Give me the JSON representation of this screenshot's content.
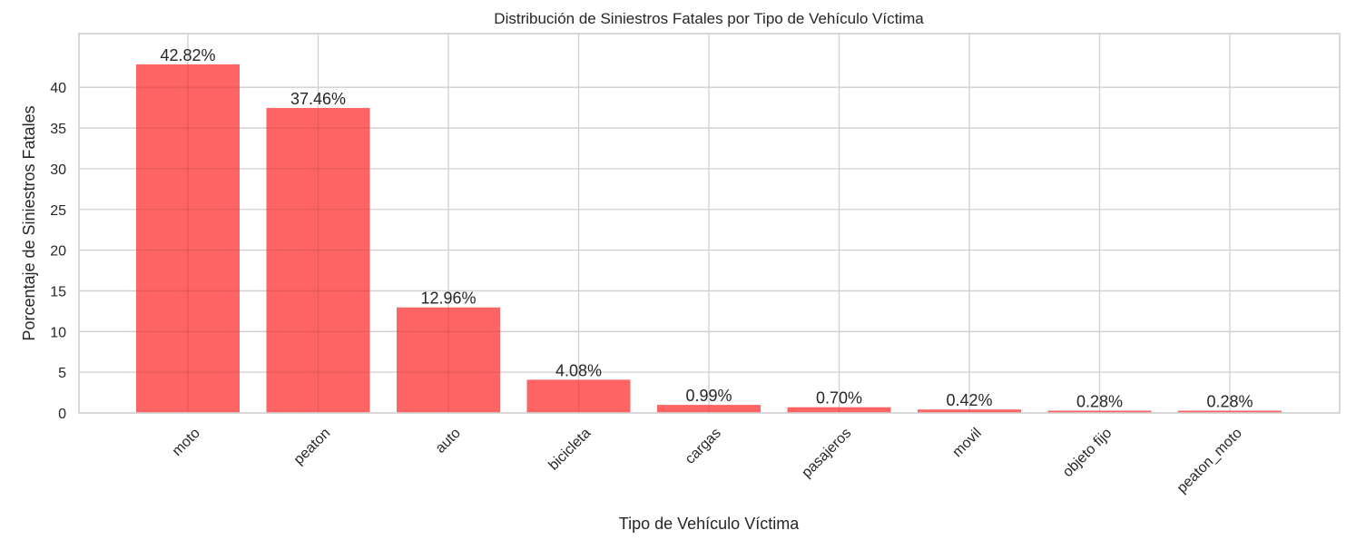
{
  "chart_data": {
    "type": "bar",
    "title": "Distribución de Siniestros Fatales por Tipo de Vehículo Víctima",
    "xlabel": "Tipo de Vehículo Víctima",
    "ylabel": "Porcentaje de Siniestros Fatales",
    "categories": [
      "moto",
      "peaton",
      "auto",
      "bicicleta",
      "cargas",
      "pasajeros",
      "movil",
      "objeto fijo",
      "peaton_moto"
    ],
    "values": [
      42.82,
      37.46,
      12.96,
      4.08,
      0.99,
      0.7,
      0.42,
      0.28,
      0.28
    ],
    "data_labels": [
      "42.82%",
      "37.46%",
      "12.96%",
      "4.08%",
      "0.99%",
      "0.70%",
      "0.42%",
      "0.28%",
      "0.28%"
    ],
    "yticks": [
      0,
      5,
      10,
      15,
      20,
      25,
      30,
      35,
      40
    ],
    "ylim": [
      0,
      45
    ],
    "grid": true,
    "bar_color": "#ff6464",
    "grid_color": "#cfcfcf"
  }
}
